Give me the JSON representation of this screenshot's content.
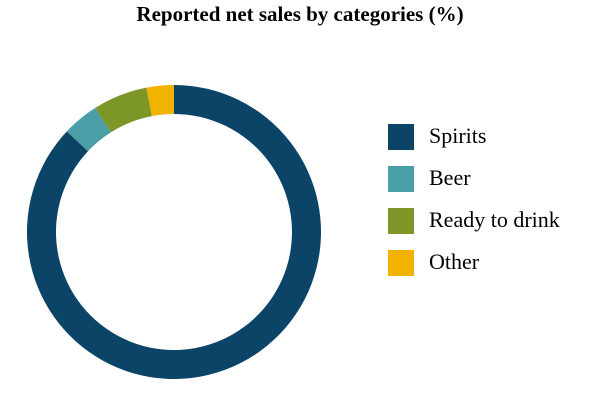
{
  "chart_data": {
    "type": "donut",
    "title": "Reported net sales by categories (%)",
    "categories": [
      "Spirits",
      "Beer",
      "Ready to drink",
      "Other"
    ],
    "values": [
      87,
      4,
      6,
      3
    ],
    "colors": [
      "#0b4466",
      "#4a9ea6",
      "#7d9628",
      "#f2b200"
    ],
    "legend": "right"
  }
}
